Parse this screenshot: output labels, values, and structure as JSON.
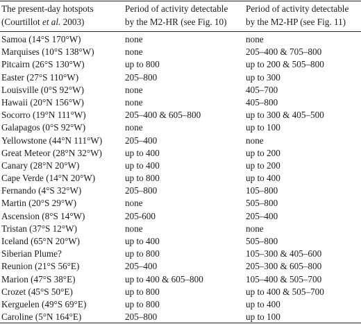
{
  "header": {
    "col1_line1": "The present-day hotspots",
    "col1_line2_prefix": "(Courtillot ",
    "col1_line2_italic": "et al.",
    "col1_line2_suffix": " 2003)",
    "col2_line1": "Period of activity detectable",
    "col2_line2": "by the M2-HR (see Fig. 10)",
    "col3_line1": "Period of activity detectable",
    "col3_line2": "by the M2-HP (see Fig. 11)"
  },
  "rows": [
    {
      "hotspot": "Samoa (14°S 170°W)",
      "m2hr": "none",
      "m2hp": "none"
    },
    {
      "hotspot": "Marquises (10°S 138°W)",
      "m2hr": "none",
      "m2hp": "205–400 & 705–800"
    },
    {
      "hotspot": "Pitcairn (26°S 130°W)",
      "m2hr": "up to 800",
      "m2hp": "up to 200 & 505–800"
    },
    {
      "hotspot": "Easter (27°S 110°W)",
      "m2hr": "205–800",
      "m2hp": "up to 300"
    },
    {
      "hotspot": "Louisville (0°S 92°W)",
      "m2hr": "none",
      "m2hp": "405–700"
    },
    {
      "hotspot": "Hawaii (20°N 156°W)",
      "m2hr": "none",
      "m2hp": "405–800"
    },
    {
      "hotspot": "Socorro (19°N 111°W)",
      "m2hr": "205–400 & 605–800",
      "m2hp": "up to 300 & 405–500"
    },
    {
      "hotspot": "Galapagos (0°S 92°W)",
      "m2hr": "none",
      "m2hp": "up to 100"
    },
    {
      "hotspot": "Yellowstone (44°N 111°W)",
      "m2hr": "205–400",
      "m2hp": "none"
    },
    {
      "hotspot": "Great Meteor (28°N 32°W)",
      "m2hr": "up to 400",
      "m2hp": "up to 200"
    },
    {
      "hotspot": "Canary (28°N 20°W)",
      "m2hr": "up to 400",
      "m2hp": "up to 200"
    },
    {
      "hotspot": "Cape Verde (14°N 20°W)",
      "m2hr": "up to 800",
      "m2hp": "up to 400"
    },
    {
      "hotspot": "Fernando (4°S 32°W)",
      "m2hr": "205–800",
      "m2hp": "105–800"
    },
    {
      "hotspot": "Martin (20°S 29°W)",
      "m2hr": "none",
      "m2hp": "505–800"
    },
    {
      "hotspot": "Ascension (8°S 14°W)",
      "m2hr": "205-600",
      "m2hp": "205–400"
    },
    {
      "hotspot": "Tristan (37°S 12°W)",
      "m2hr": "none",
      "m2hp": "none"
    },
    {
      "hotspot": "Iceland (65°N 20°W)",
      "m2hr": "up to 400",
      "m2hp": "505–800"
    },
    {
      "hotspot": "Siberian Plume?",
      "m2hr": "up to 800",
      "m2hp": "105–300 & 405–600"
    },
    {
      "hotspot": "Reunion (21°S 56°E)",
      "m2hr": "205–400",
      "m2hp": "205–300 & 605–800"
    },
    {
      "hotspot": "Marion (47°S 38°E)",
      "m2hr": "up to 400 & 605–800",
      "m2hp": "105–400 & 505–700"
    },
    {
      "hotspot": "Crozet (45°S 50°E)",
      "m2hr": "up to 800",
      "m2hp": "up to 400 & 505–700"
    },
    {
      "hotspot": "Kerguelen (49°S 69°E)",
      "m2hr": "up to 800",
      "m2hp": "up to 400"
    },
    {
      "hotspot": "Caroline (5°N 164°E)",
      "m2hr": "205–800",
      "m2hp": "up to 100"
    }
  ]
}
